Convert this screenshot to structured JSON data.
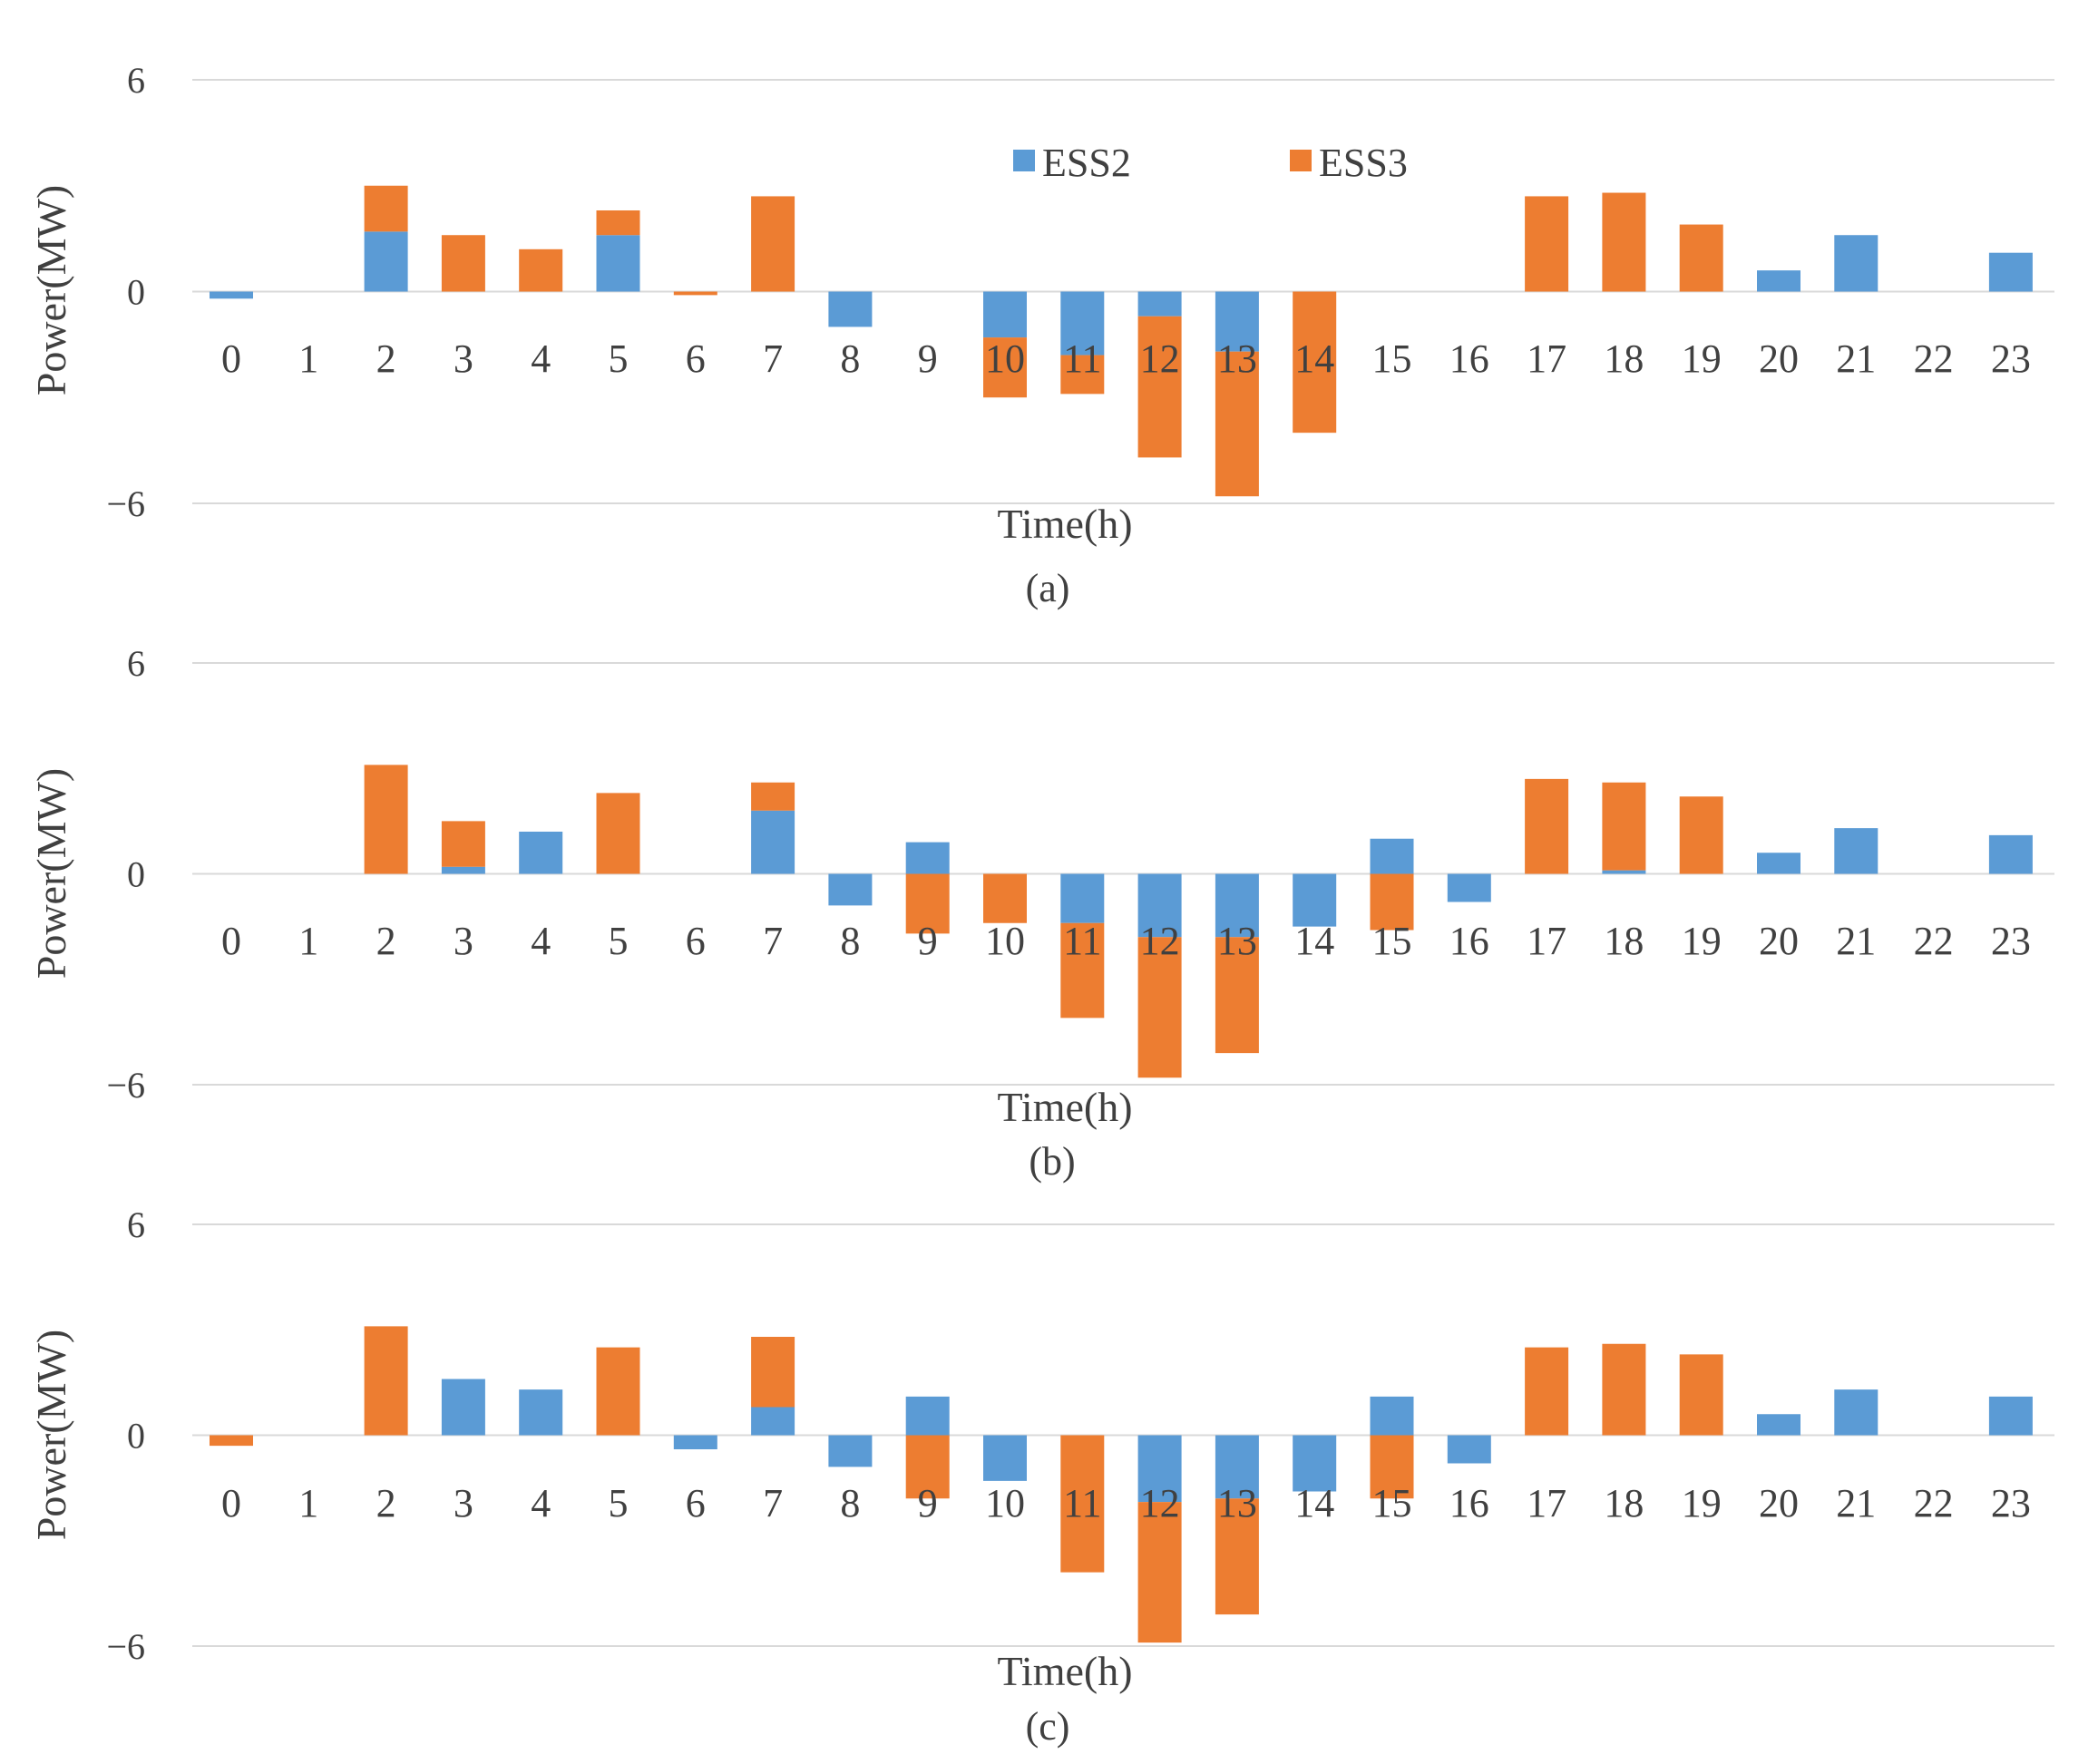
{
  "figure": {
    "legend": [
      {
        "name": "ESS2",
        "color": "#5b9bd5"
      },
      {
        "name": "ESS3",
        "color": "#ed7d31"
      }
    ]
  },
  "chart_data": [
    {
      "type": "bar",
      "stacked": true,
      "panel_label": "(a)",
      "xlabel": "Time(h)",
      "ylabel": "Power(MW)",
      "ylim": [
        -6,
        6
      ],
      "yticks": [
        "6",
        "0",
        "−6"
      ],
      "yticks_values": [
        6,
        0,
        -6
      ],
      "grid": true,
      "legend_position": "top-center",
      "categories": [
        "0",
        "1",
        "2",
        "3",
        "4",
        "5",
        "6",
        "7",
        "8",
        "9",
        "10",
        "11",
        "12",
        "13",
        "14",
        "15",
        "16",
        "17",
        "18",
        "19",
        "20",
        "21",
        "22",
        "23"
      ],
      "series": [
        {
          "name": "ESS2",
          "color": "#5b9bd5",
          "values": [
            -0.2,
            0,
            1.7,
            0,
            0,
            1.6,
            0,
            0,
            -1.0,
            0,
            -1.3,
            -1.8,
            -0.7,
            -1.7,
            0,
            0,
            0,
            0,
            0,
            0,
            0.6,
            1.6,
            0,
            1.1
          ]
        },
        {
          "name": "ESS3",
          "color": "#ed7d31",
          "values": [
            0,
            0,
            1.3,
            1.6,
            1.2,
            0.7,
            -0.1,
            2.7,
            0,
            0,
            -1.7,
            -1.1,
            -4.0,
            -4.1,
            -4.0,
            0,
            0,
            2.7,
            2.8,
            1.9,
            0,
            0,
            0,
            0
          ]
        }
      ]
    },
    {
      "type": "bar",
      "stacked": true,
      "panel_label": "(b)",
      "xlabel": "Time(h)",
      "ylabel": "Power(MW)",
      "ylim": [
        -6,
        6
      ],
      "yticks": [
        "6",
        "0",
        "−6"
      ],
      "yticks_values": [
        6,
        0,
        -6
      ],
      "grid": true,
      "categories": [
        "0",
        "1",
        "2",
        "3",
        "4",
        "5",
        "6",
        "7",
        "8",
        "9",
        "10",
        "11",
        "12",
        "13",
        "14",
        "15",
        "16",
        "17",
        "18",
        "19",
        "20",
        "21",
        "22",
        "23"
      ],
      "series": [
        {
          "name": "ESS2",
          "color": "#5b9bd5",
          "values": [
            0,
            0,
            0,
            0.2,
            1.2,
            0,
            0,
            1.8,
            -0.9,
            0.9,
            0,
            -1.4,
            -1.8,
            -1.8,
            -1.5,
            1.0,
            -0.8,
            0,
            0.1,
            0,
            0.6,
            1.3,
            0,
            1.1
          ]
        },
        {
          "name": "ESS3",
          "color": "#ed7d31",
          "values": [
            0,
            0,
            3.1,
            1.3,
            0,
            2.3,
            0,
            0.8,
            0,
            -1.7,
            -1.4,
            -2.7,
            -4.0,
            -3.3,
            0,
            -1.6,
            0,
            2.7,
            2.5,
            2.2,
            0,
            0,
            0,
            0
          ]
        }
      ]
    },
    {
      "type": "bar",
      "stacked": true,
      "panel_label": "(c)",
      "xlabel": "Time(h)",
      "ylabel": "Power(MW)",
      "ylim": [
        -6,
        6
      ],
      "yticks": [
        "6",
        "0",
        "−6"
      ],
      "yticks_values": [
        6,
        0,
        -6
      ],
      "grid": true,
      "categories": [
        "0",
        "1",
        "2",
        "3",
        "4",
        "5",
        "6",
        "7",
        "8",
        "9",
        "10",
        "11",
        "12",
        "13",
        "14",
        "15",
        "16",
        "17",
        "18",
        "19",
        "20",
        "21",
        "22",
        "23"
      ],
      "series": [
        {
          "name": "ESS2",
          "color": "#5b9bd5",
          "values": [
            0,
            0,
            0,
            1.6,
            1.3,
            0,
            -0.4,
            0.8,
            -0.9,
            1.1,
            -1.3,
            0,
            -1.9,
            -1.8,
            -1.6,
            1.1,
            -0.8,
            0,
            0,
            0,
            0.6,
            1.3,
            0,
            1.1
          ]
        },
        {
          "name": "ESS3",
          "color": "#ed7d31",
          "values": [
            -0.3,
            0,
            3.1,
            0,
            0,
            2.5,
            0,
            2.0,
            0,
            -1.8,
            0,
            -3.9,
            -4.0,
            -3.3,
            0,
            -1.8,
            0,
            2.5,
            2.6,
            2.3,
            0,
            0,
            0,
            0
          ]
        }
      ]
    }
  ]
}
